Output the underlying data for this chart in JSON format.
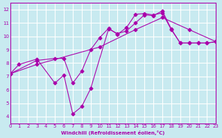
{
  "xlabel": "Windchill (Refroidissement éolien,°C)",
  "ylabel": "",
  "bg_color": "#c8eaf0",
  "line_color": "#aa00aa",
  "grid_color": "#ffffff",
  "xlim": [
    0,
    23
  ],
  "ylim": [
    3.5,
    12.5
  ],
  "xticks": [
    0,
    1,
    2,
    3,
    4,
    5,
    6,
    7,
    8,
    9,
    10,
    11,
    12,
    13,
    14,
    15,
    16,
    17,
    18,
    19,
    20,
    21,
    22,
    23
  ],
  "yticks": [
    4,
    5,
    6,
    7,
    8,
    9,
    10,
    11,
    12
  ],
  "line1_x": [
    0,
    1,
    3,
    5,
    6,
    7,
    8,
    9,
    11,
    12,
    13,
    14,
    15,
    16,
    17,
    18,
    19,
    20,
    21,
    22,
    23
  ],
  "line1_y": [
    7.2,
    7.9,
    8.3,
    6.5,
    7.1,
    4.2,
    4.75,
    6.1,
    10.55,
    10.2,
    10.4,
    11.0,
    11.6,
    11.55,
    11.9,
    10.55,
    9.5,
    9.5,
    9.5,
    9.5,
    9.6
  ],
  "line2_x": [
    0,
    3,
    5,
    6,
    7,
    8,
    9,
    10,
    11,
    12,
    13,
    14,
    15,
    16,
    17,
    18,
    19,
    20,
    21,
    22,
    23
  ],
  "line2_y": [
    7.2,
    8.2,
    8.35,
    8.35,
    6.5,
    7.4,
    9.0,
    9.9,
    10.6,
    10.15,
    10.65,
    11.65,
    11.7,
    11.6,
    11.75,
    10.5,
    9.5,
    9.5,
    9.5,
    9.5,
    9.6
  ],
  "line3_x": [
    0,
    3,
    10,
    14,
    17,
    20,
    23
  ],
  "line3_y": [
    7.2,
    7.9,
    9.2,
    10.5,
    11.4,
    10.5,
    9.6
  ]
}
